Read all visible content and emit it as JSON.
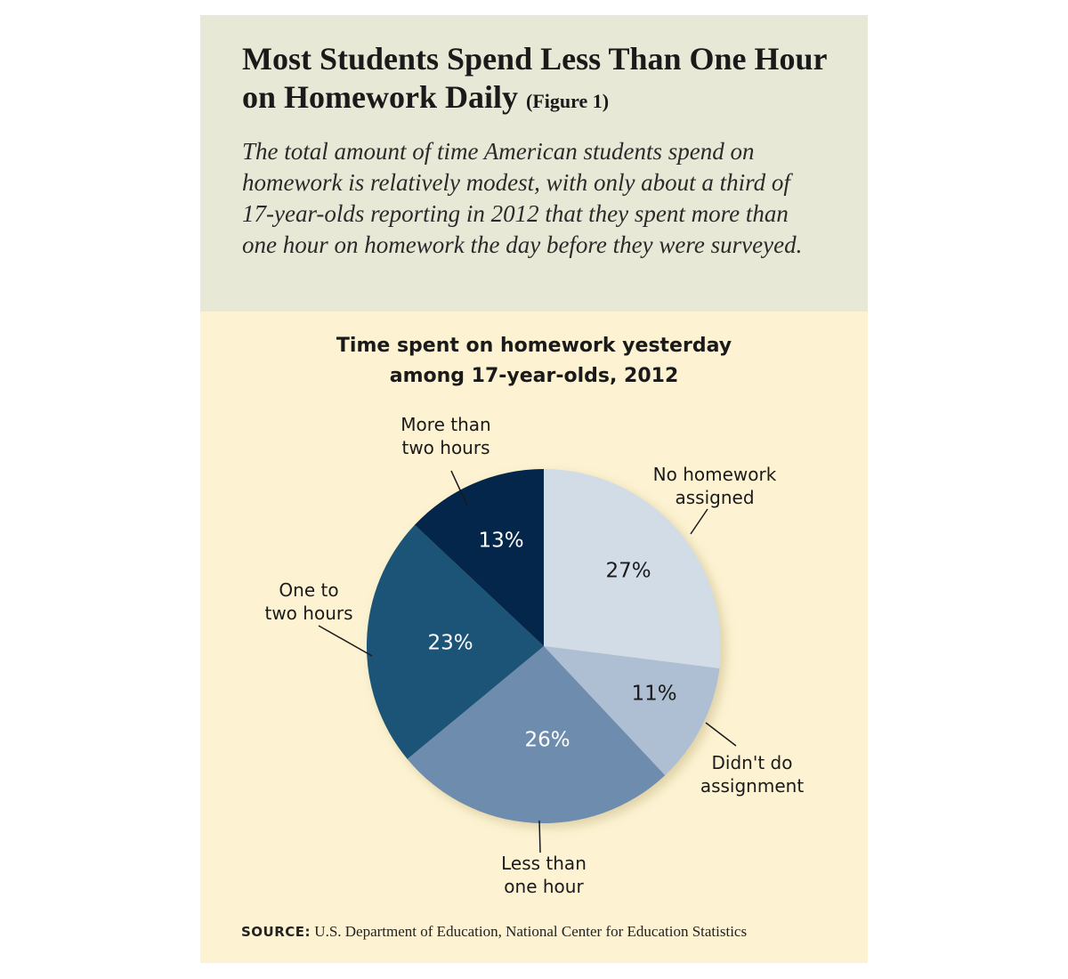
{
  "title": "Most Students Spend Less Than One Hour on Homework Daily",
  "figure_ref": "(Figure 1)",
  "subtitle": "The total amount of time American students spend on homework is relatively modest, with only about a third of 17-year-olds reporting in 2012 that they spent more than one hour on homework the day before they were surveyed.",
  "source_label": "SOURCE:",
  "source_text": "U.S. Department of Education, National Center for Education Statistics",
  "chart_data": {
    "type": "pie",
    "title_line1": "Time spent on homework yesterday",
    "title_line2": "among 17-year-olds, 2012",
    "start": "top",
    "direction": "clockwise",
    "slices": [
      {
        "label_line1": "No homework",
        "label_line2": "assigned",
        "value": 27,
        "value_label": "27%",
        "color": "#d1dce7",
        "text_color": "#1a1a1a"
      },
      {
        "label_line1": "Didn't do",
        "label_line2": "assignment",
        "value": 11,
        "value_label": "11%",
        "color": "#aebfd4",
        "text_color": "#1a1a1a"
      },
      {
        "label_line1": "Less than",
        "label_line2": "one hour",
        "value": 26,
        "value_label": "26%",
        "color": "#6e8cad",
        "text_color": "#ffffff"
      },
      {
        "label_line1": "One to",
        "label_line2": "two hours",
        "value": 23,
        "value_label": "23%",
        "color": "#1c5478",
        "text_color": "#ffffff"
      },
      {
        "label_line1": "More than",
        "label_line2": "two hours",
        "value": 13,
        "value_label": "13%",
        "color": "#03264a",
        "text_color": "#ffffff"
      }
    ]
  },
  "colors": {
    "header_bg": "#e8e8d7",
    "body_bg": "#fdf3d2"
  }
}
